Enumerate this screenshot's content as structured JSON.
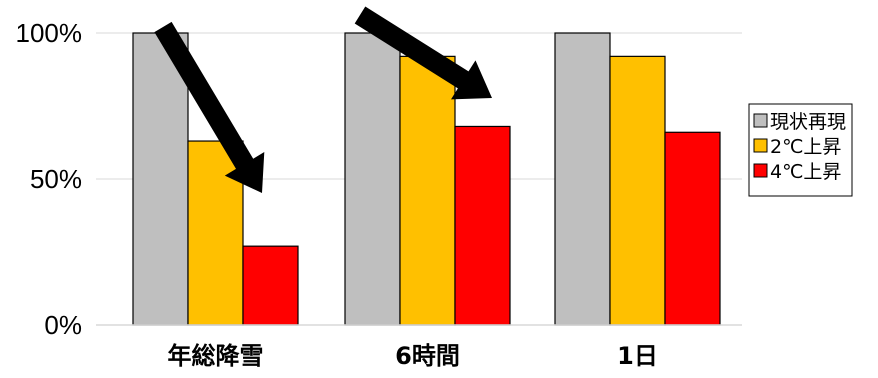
{
  "chart_data": {
    "type": "bar",
    "categories": [
      "年総降雪",
      "6時間",
      "1日"
    ],
    "series": [
      {
        "name": "現状再現",
        "color": "#bfbfbf",
        "values": [
          100,
          100,
          100
        ]
      },
      {
        "name": "2℃上昇",
        "color": "#ffc000",
        "values": [
          63,
          92,
          92
        ]
      },
      {
        "name": "4℃上昇",
        "color": "#ff0000",
        "values": [
          27,
          68,
          66
        ]
      }
    ],
    "yticks": [
      "0%",
      "50%",
      "100%"
    ],
    "ylim": [
      0,
      100
    ],
    "grid": true,
    "legend_position": "right",
    "annotations": [
      "decrease-arrow",
      "decrease-arrow"
    ]
  }
}
